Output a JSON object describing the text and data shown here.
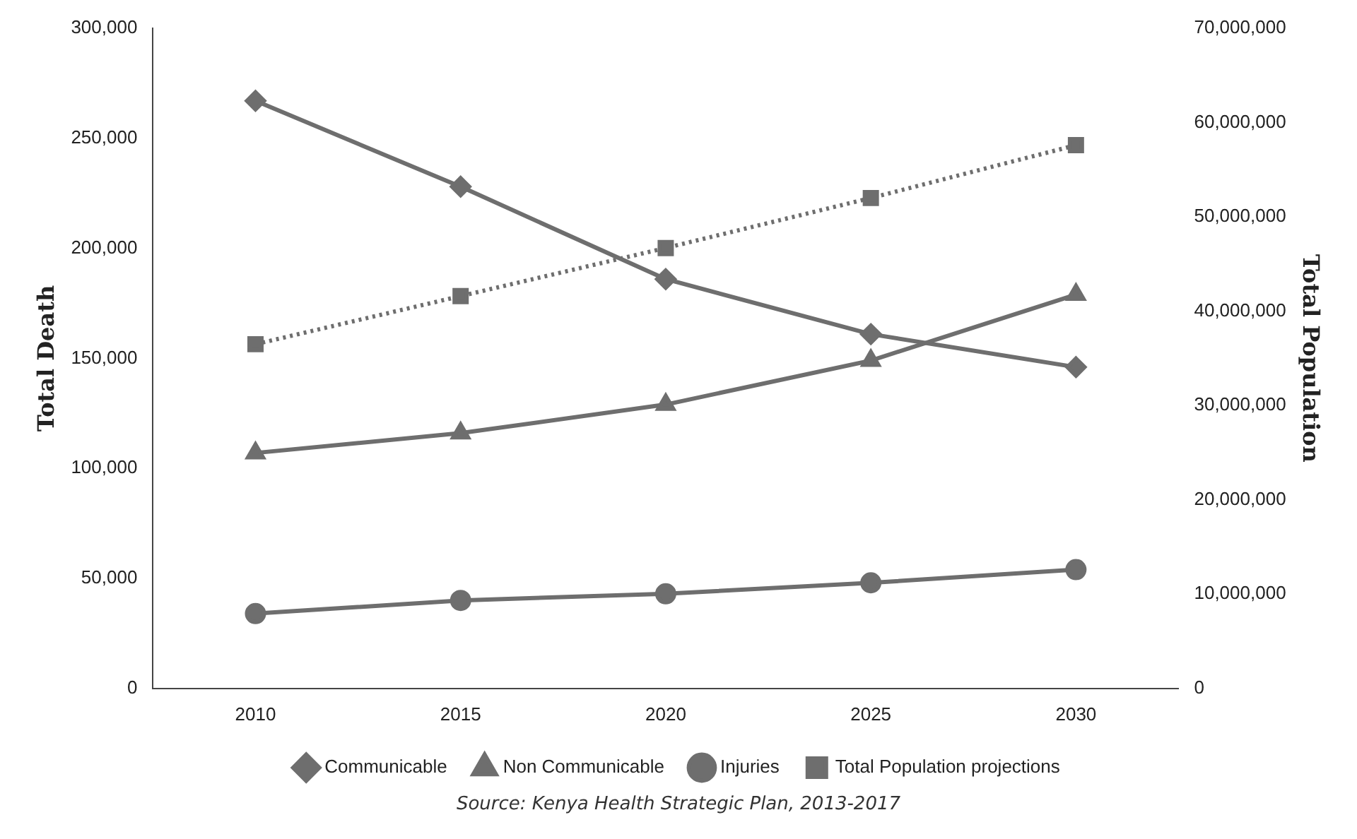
{
  "chart_data": {
    "type": "line",
    "ylabel": "Total Death",
    "y2label": "Total Population",
    "categories": [
      "2010",
      "2015",
      "2020",
      "2025",
      "2030"
    ],
    "series": [
      {
        "name": "Communicable",
        "color": "#6e6e6e",
        "marker": "diamond",
        "line_style": "solid",
        "values": [
          267000,
          228000,
          186000,
          161000,
          146000
        ]
      },
      {
        "name": "Non Communicable",
        "color": "#6e6e6e",
        "marker": "triangle",
        "line_style": "solid",
        "values": [
          107000,
          116000,
          129000,
          149000,
          179000
        ]
      },
      {
        "name": "Injuries",
        "color": "#6e6e6e",
        "marker": "circle",
        "line_style": "solid",
        "values": [
          34000,
          40000,
          43000,
          48000,
          54000
        ]
      },
      {
        "name": "Total Population projections",
        "color": "#6e6e6e",
        "marker": "square",
        "line_style": "dotted",
        "axis": "y2",
        "values": [
          36500000,
          41600000,
          46700000,
          52000000,
          57600000
        ]
      }
    ],
    "ylim": [
      0,
      300000
    ],
    "yticks": [
      0,
      {
        "value": 50000,
        "label": "50,000"
      },
      {
        "value": 100000,
        "label": "100,000"
      },
      {
        "value": 150000,
        "label": "150,000"
      },
      {
        "value": 200000,
        "label": "200,000"
      },
      {
        "value": 250000,
        "label": "250,000"
      },
      {
        "value": 300000,
        "label": "300,000"
      }
    ],
    "y2lim": [
      0,
      70000000
    ],
    "y2ticks": [
      0,
      {
        "value": 10000000,
        "label": "10,000,000"
      },
      {
        "value": 20000000,
        "label": "20,000,000"
      },
      {
        "value": 30000000,
        "label": "30,000,000"
      },
      {
        "value": 40000000,
        "label": "40,000,000"
      },
      {
        "value": 50000000,
        "label": "50,000,000"
      },
      {
        "value": 60000000,
        "label": "60,000,000"
      },
      {
        "value": 70000000,
        "label": "70,000,000"
      }
    ],
    "grid": false,
    "legend": "bottom",
    "annotations": [
      "Source: Kenya Health Strategic Plan, 2013-2017"
    ]
  }
}
